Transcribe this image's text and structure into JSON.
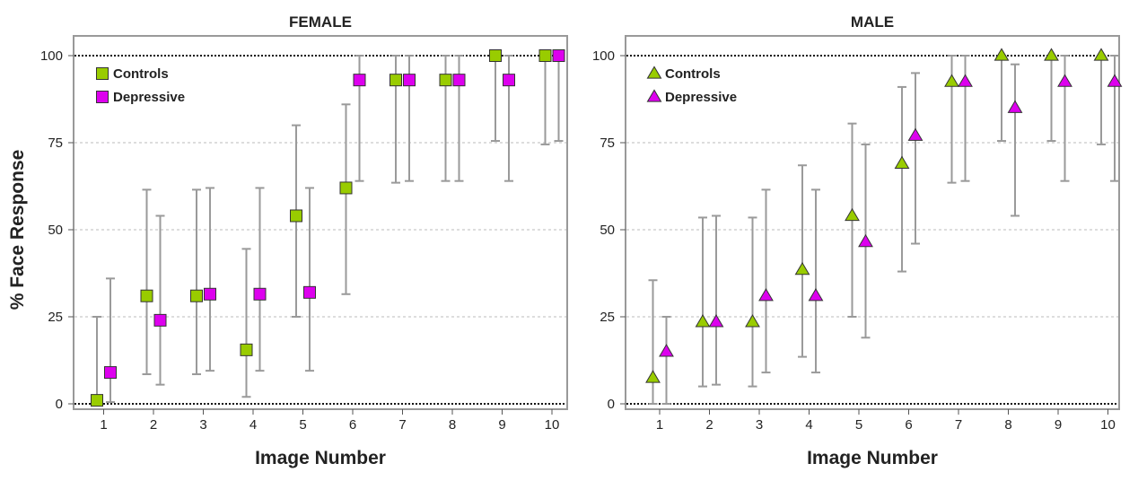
{
  "y_axis_title": "% Face Response",
  "colors": {
    "controls": "#99cc00",
    "depressive": "#dd00ee",
    "errorbar": "#9a9a9a",
    "frame": "#999999",
    "grid": "#bbbbbb",
    "refline": "#111111"
  },
  "chart_data": [
    {
      "type": "scatter",
      "title": "FEMALE",
      "xlabel": "Image Number",
      "ylabel": "% Face Response",
      "marker": "square",
      "x": [
        1,
        2,
        3,
        4,
        5,
        6,
        7,
        8,
        9,
        10
      ],
      "ylim": [
        0,
        100
      ],
      "yticks": [
        0,
        25,
        50,
        75,
        100
      ],
      "legend": "top-left",
      "series": [
        {
          "name": "Controls",
          "values": [
            1,
            31,
            31,
            15.5,
            54,
            62,
            93,
            93,
            100,
            100
          ],
          "upper": [
            25,
            61.5,
            61.5,
            44.5,
            80,
            86,
            100,
            100,
            100,
            100
          ],
          "lower": [
            0,
            8.5,
            8.5,
            2,
            25,
            31.5,
            63.5,
            64,
            75.5,
            74.5
          ]
        },
        {
          "name": "Depressive",
          "values": [
            9,
            24,
            31.5,
            31.5,
            32,
            93,
            93,
            93,
            93,
            100
          ],
          "upper": [
            36,
            54,
            62,
            62,
            62,
            100,
            100,
            100,
            100,
            100
          ],
          "lower": [
            0.5,
            5.5,
            9.5,
            9.5,
            9.5,
            64,
            64,
            64,
            64,
            75.5
          ]
        }
      ]
    },
    {
      "type": "scatter",
      "title": "MALE",
      "xlabel": "Image Number",
      "ylabel": "% Face Response",
      "marker": "triangle",
      "x": [
        1,
        2,
        3,
        4,
        5,
        6,
        7,
        8,
        9,
        10
      ],
      "ylim": [
        0,
        100
      ],
      "yticks": [
        0,
        25,
        50,
        75,
        100
      ],
      "legend": "top-left",
      "series": [
        {
          "name": "Controls",
          "values": [
            7.5,
            23.5,
            23.5,
            38.5,
            54,
            69,
            92.5,
            100,
            100,
            100
          ],
          "upper": [
            35.5,
            53.5,
            53.5,
            68.5,
            80.5,
            91,
            100,
            100,
            100,
            100
          ],
          "lower": [
            0,
            5,
            5,
            13.5,
            25,
            38,
            63.5,
            75.5,
            75.5,
            74.5
          ]
        },
        {
          "name": "Depressive",
          "values": [
            15,
            23.5,
            31,
            31,
            46.5,
            77,
            92.5,
            85,
            92.5,
            92.5
          ],
          "upper": [
            25,
            54,
            61.5,
            61.5,
            74.5,
            95,
            100,
            97.5,
            100,
            100
          ],
          "lower": [
            0,
            5.5,
            9,
            9,
            19,
            46,
            64,
            54,
            64,
            64
          ]
        }
      ]
    }
  ]
}
